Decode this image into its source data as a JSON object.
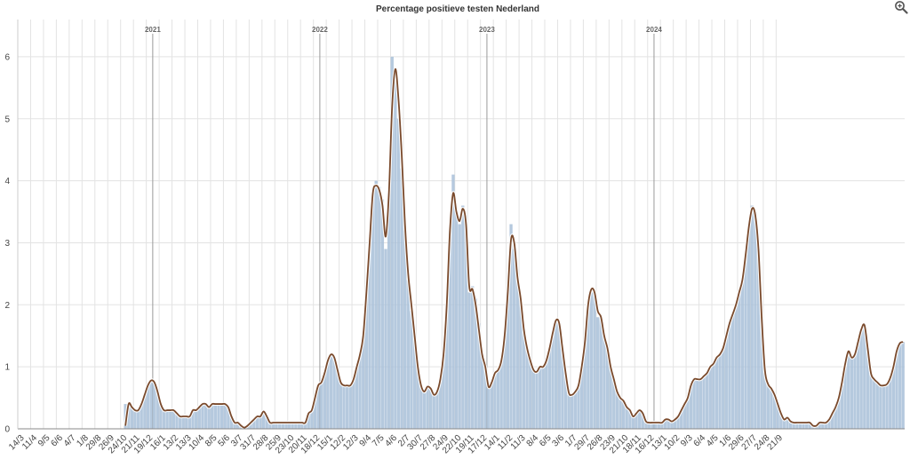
{
  "colors": {
    "bars": "#a8c0d8",
    "bar_edge": "#8aa6c2",
    "line": "#7a4a2c",
    "line_glow": "#ffffff",
    "grid": "#e3e3e3",
    "year_line": "#9a9a9a"
  },
  "zoom_icon": "zoom-in-icon",
  "chart_data": {
    "type": "area",
    "title": "Percentage positieve testen Nederland",
    "xlabel": "",
    "ylabel": "",
    "ylim": [
      0,
      6.6
    ],
    "y_ticks": [
      0,
      1,
      2,
      3,
      4,
      5,
      6
    ],
    "grid": true,
    "x_ticks": [
      "14/3",
      "11/4",
      "9/5",
      "6/6",
      "4/7",
      "1/8",
      "29/8",
      "26/9",
      "24/10",
      "21/11",
      "19/12",
      "16/1",
      "13/2",
      "13/3",
      "10/4",
      "8/5",
      "5/6",
      "3/7",
      "31/7",
      "28/8",
      "25/9",
      "23/10",
      "20/11",
      "18/12",
      "15/1",
      "12/2",
      "12/3",
      "9/4",
      "7/5",
      "4/6",
      "2/7",
      "30/7",
      "27/8",
      "24/9",
      "22/10",
      "19/11",
      "17/12",
      "14/1",
      "11/2",
      "11/3",
      "8/4",
      "6/5",
      "3/6",
      "1/7",
      "29/7",
      "26/8",
      "23/9",
      "21/10",
      "18/11",
      "16/12",
      "13/1",
      "10/2",
      "9/3",
      "6/4",
      "4/5",
      "1/6",
      "29/6",
      "27/7",
      "24/8",
      "21/9"
    ],
    "years": [
      {
        "label": "2021",
        "at_week": 42
      },
      {
        "label": "2022",
        "at_week": 94
      },
      {
        "label": "2023",
        "at_week": 146
      },
      {
        "label": "2024",
        "at_week": 198
      }
    ],
    "series": [
      {
        "type": "bar",
        "values": [
          0,
          0,
          0,
          0,
          0,
          0,
          0,
          0,
          0,
          0,
          0,
          0,
          0,
          0,
          0,
          0,
          0,
          0,
          0,
          0,
          0,
          0,
          0,
          0,
          0,
          0,
          0,
          0,
          0,
          0,
          0,
          0,
          0,
          0.4,
          0.4,
          0.35,
          0.3,
          0.3,
          0.4,
          0.55,
          0.7,
          0.75,
          0.75,
          0.6,
          0.4,
          0.3,
          0.3,
          0.3,
          0.3,
          0.25,
          0.2,
          0.2,
          0.2,
          0.2,
          0.3,
          0.3,
          0.35,
          0.4,
          0.4,
          0.35,
          0.4,
          0.4,
          0.4,
          0.4,
          0.4,
          0.35,
          0.2,
          0.1,
          0.1,
          0.05,
          0.02,
          0.05,
          0.1,
          0.15,
          0.2,
          0.2,
          0.25,
          0.2,
          0.1,
          0.1,
          0.1,
          0.1,
          0.1,
          0.1,
          0.1,
          0.1,
          0.1,
          0.1,
          0.1,
          0.1,
          0.25,
          0.3,
          0.5,
          0.7,
          0.75,
          0.9,
          1.1,
          1.2,
          1.15,
          0.95,
          0.75,
          0.7,
          0.7,
          0.7,
          0.8,
          1.0,
          1.2,
          1.5,
          2.2,
          3.0,
          3.8,
          4.0,
          3.9,
          3.7,
          2.9,
          3.8,
          6.0,
          5.6,
          5.0,
          4.2,
          3.2,
          2.4,
          1.9,
          1.5,
          1.0,
          0.7,
          0.6,
          0.7,
          0.65,
          0.55,
          0.6,
          0.8,
          1.2,
          2.0,
          3.2,
          4.1,
          3.5,
          3.3,
          3.6,
          3.3,
          2.2,
          2.3,
          2.1,
          1.7,
          1.2,
          1.0,
          0.65,
          0.75,
          0.9,
          0.95,
          1.1,
          1.5,
          2.2,
          3.3,
          2.9,
          2.4,
          2.1,
          1.6,
          1.3,
          1.1,
          0.95,
          0.9,
          1.0,
          1.0,
          1.1,
          1.3,
          1.55,
          1.75,
          1.7,
          1.3,
          0.9,
          0.55,
          0.55,
          0.6,
          0.7,
          1.0,
          1.4,
          2.0,
          2.2,
          2.2,
          1.8,
          1.8,
          1.5,
          1.3,
          1.0,
          0.8,
          0.6,
          0.5,
          0.45,
          0.35,
          0.3,
          0.2,
          0.25,
          0.3,
          0.25,
          0.1,
          0.1,
          0.1,
          0.1,
          0.1,
          0.1,
          0.15,
          0.15,
          0.1,
          0.15,
          0.2,
          0.3,
          0.4,
          0.5,
          0.7,
          0.8,
          0.8,
          0.8,
          0.85,
          0.9,
          1.0,
          1.05,
          1.15,
          1.2,
          1.3,
          1.5,
          1.7,
          1.85,
          2.0,
          2.2,
          2.4,
          2.8,
          3.3,
          3.6,
          3.5,
          2.9,
          1.8,
          0.9,
          0.7,
          0.65,
          0.55,
          0.4,
          0.25,
          0.15,
          0.15,
          0.1,
          0.1,
          0.1,
          0.1,
          0.1,
          0.1,
          0.1,
          0.05,
          0.05,
          0.1,
          0.1,
          0.1,
          0.15,
          0.25,
          0.35,
          0.5,
          0.7,
          1.0,
          1.25,
          1.15,
          1.2,
          1.4,
          1.6,
          1.65,
          1.3,
          0.9,
          0.8,
          0.75,
          0.7,
          0.7,
          0.7,
          0.8,
          1.0,
          1.25,
          1.4,
          1.4
        ]
      },
      {
        "type": "line",
        "values": [
          null,
          null,
          null,
          null,
          null,
          null,
          null,
          null,
          null,
          null,
          null,
          null,
          null,
          null,
          null,
          null,
          null,
          null,
          null,
          null,
          null,
          null,
          null,
          null,
          null,
          null,
          null,
          null,
          null,
          null,
          null,
          null,
          null,
          0.05,
          0.4,
          0.35,
          0.3,
          0.3,
          0.4,
          0.55,
          0.7,
          0.78,
          0.75,
          0.6,
          0.4,
          0.3,
          0.3,
          0.3,
          0.3,
          0.25,
          0.2,
          0.2,
          0.2,
          0.2,
          0.3,
          0.3,
          0.35,
          0.4,
          0.4,
          0.35,
          0.4,
          0.4,
          0.4,
          0.4,
          0.4,
          0.35,
          0.2,
          0.1,
          0.1,
          0.05,
          0.02,
          0.05,
          0.1,
          0.15,
          0.2,
          0.2,
          0.28,
          0.2,
          0.1,
          0.1,
          0.1,
          0.1,
          0.1,
          0.1,
          0.1,
          0.1,
          0.1,
          0.1,
          0.1,
          0.1,
          0.25,
          0.3,
          0.5,
          0.7,
          0.75,
          0.9,
          1.1,
          1.2,
          1.15,
          0.95,
          0.75,
          0.7,
          0.7,
          0.7,
          0.8,
          1.0,
          1.2,
          1.5,
          2.2,
          3.0,
          3.8,
          3.92,
          3.85,
          3.6,
          3.1,
          3.8,
          5.2,
          5.8,
          5.3,
          4.4,
          3.3,
          2.5,
          2.0,
          1.5,
          1.0,
          0.7,
          0.6,
          0.68,
          0.65,
          0.55,
          0.6,
          0.8,
          1.2,
          2.0,
          3.2,
          3.8,
          3.5,
          3.35,
          3.55,
          3.3,
          2.3,
          2.25,
          2.0,
          1.6,
          1.2,
          1.0,
          0.68,
          0.75,
          0.9,
          0.95,
          1.1,
          1.5,
          2.2,
          3.05,
          3.0,
          2.45,
          2.1,
          1.6,
          1.3,
          1.1,
          0.95,
          0.92,
          1.0,
          1.0,
          1.1,
          1.3,
          1.55,
          1.75,
          1.7,
          1.3,
          0.9,
          0.58,
          0.55,
          0.6,
          0.7,
          1.0,
          1.4,
          2.0,
          2.25,
          2.2,
          1.9,
          1.8,
          1.5,
          1.3,
          1.0,
          0.8,
          0.6,
          0.5,
          0.45,
          0.35,
          0.3,
          0.2,
          0.25,
          0.3,
          0.25,
          0.12,
          0.1,
          0.1,
          0.1,
          0.1,
          0.1,
          0.15,
          0.15,
          0.12,
          0.15,
          0.2,
          0.3,
          0.4,
          0.5,
          0.7,
          0.8,
          0.8,
          0.8,
          0.85,
          0.9,
          1.0,
          1.05,
          1.15,
          1.2,
          1.3,
          1.5,
          1.7,
          1.85,
          2.0,
          2.2,
          2.4,
          2.8,
          3.25,
          3.55,
          3.45,
          2.9,
          1.8,
          0.95,
          0.72,
          0.65,
          0.55,
          0.4,
          0.25,
          0.15,
          0.18,
          0.12,
          0.1,
          0.1,
          0.1,
          0.1,
          0.1,
          0.1,
          0.05,
          0.05,
          0.1,
          0.1,
          0.1,
          0.15,
          0.25,
          0.35,
          0.5,
          0.75,
          1.05,
          1.25,
          1.15,
          1.2,
          1.4,
          1.6,
          1.67,
          1.3,
          0.9,
          0.8,
          0.75,
          0.7,
          0.7,
          0.72,
          0.82,
          1.0,
          1.25,
          1.38,
          1.4
        ]
      }
    ]
  }
}
